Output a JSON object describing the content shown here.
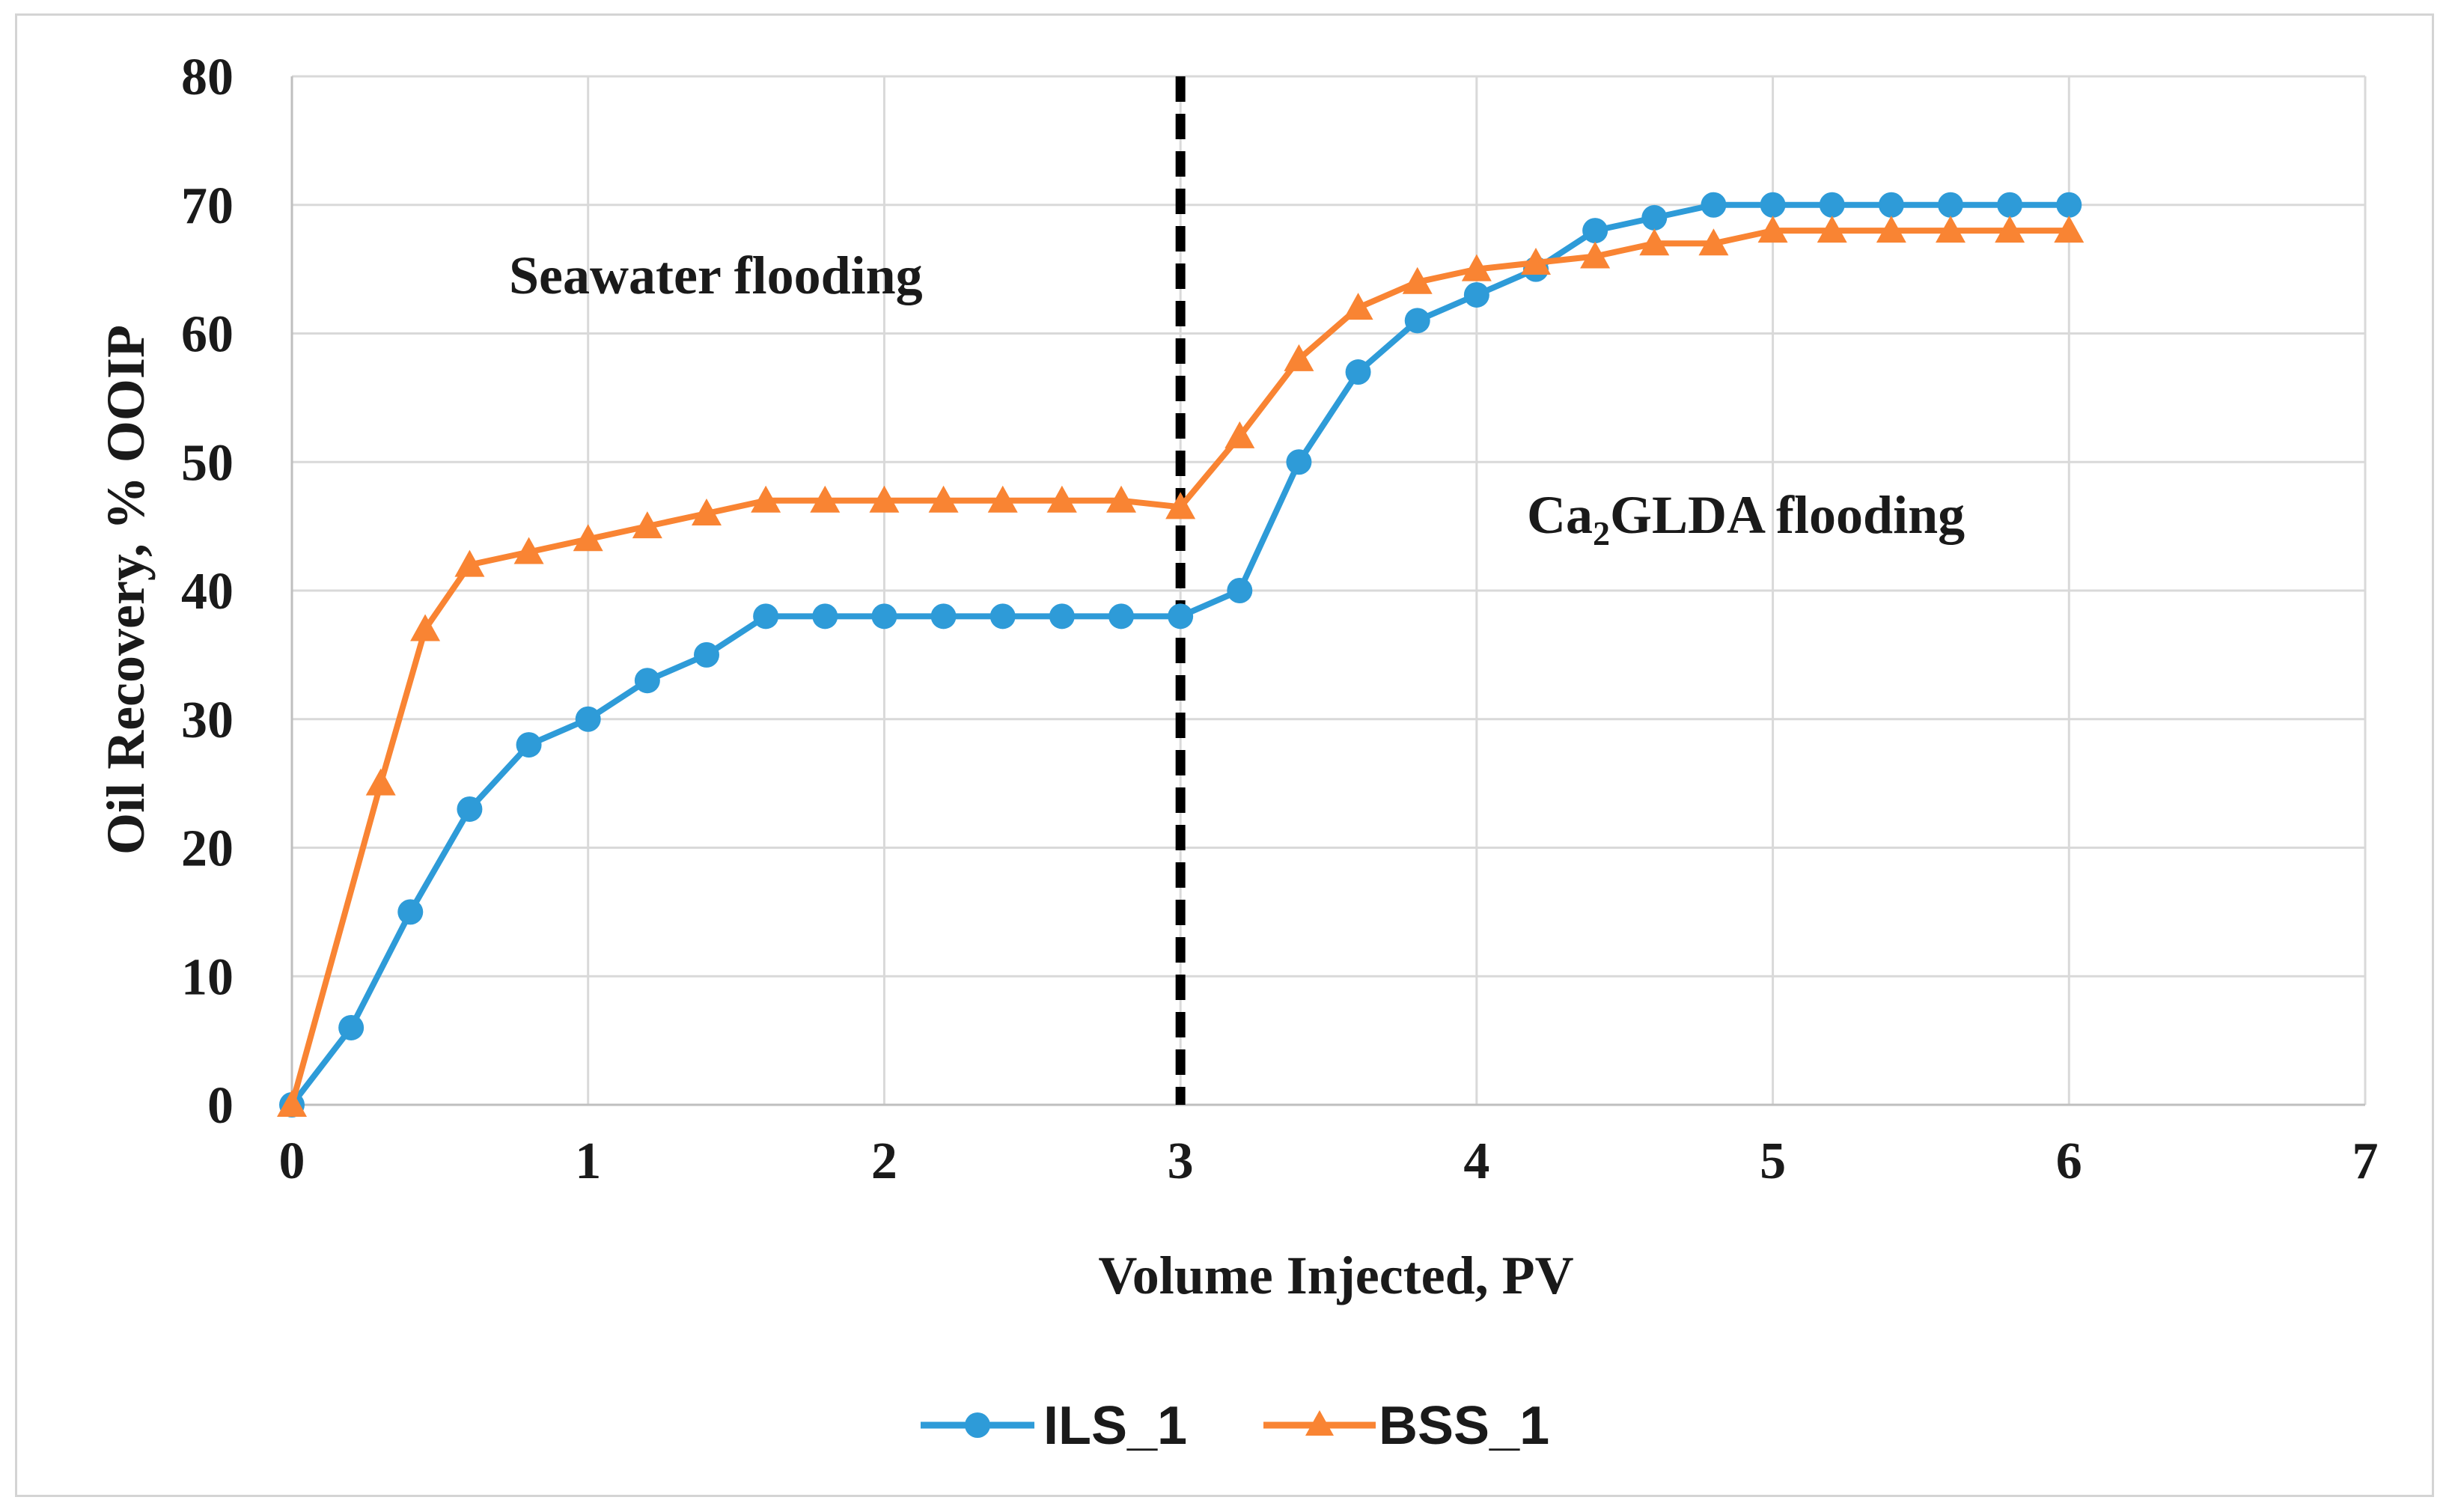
{
  "chart_data": {
    "type": "line",
    "xlabel": "Volume Injected, PV",
    "ylabel": "Oil Recovery, % OOIP",
    "xlim": [
      0,
      7
    ],
    "ylim": [
      0,
      80
    ],
    "xticks": [
      "0",
      "1",
      "2",
      "3",
      "4",
      "5",
      "6",
      "7"
    ],
    "yticks": [
      "0",
      "10",
      "20",
      "30",
      "40",
      "50",
      "60",
      "70",
      "80"
    ],
    "grid": true,
    "legend_position": "bottom-center",
    "divider_x": 3,
    "annotations": [
      {
        "text": "Seawater flooding",
        "position": "upper-left"
      },
      {
        "text_main": "Ca",
        "text_sub": "2",
        "text_rest": "GLDA flooding",
        "position": "middle-right"
      }
    ],
    "series": [
      {
        "name": "ILS_1",
        "color": "#2e9bd8",
        "marker": "circle",
        "x": [
          0,
          0.2,
          0.4,
          0.6,
          0.8,
          1.0,
          1.2,
          1.4,
          1.6,
          1.8,
          2.0,
          2.2,
          2.4,
          2.6,
          2.8,
          3.0,
          3.2,
          3.4,
          3.6,
          3.8,
          4.0,
          4.2,
          4.4,
          4.6,
          4.8,
          5.0,
          5.2,
          5.4,
          5.6,
          5.8,
          6.0
        ],
        "y": [
          0,
          6,
          15,
          23,
          28,
          30,
          33,
          35,
          38,
          38,
          38,
          38,
          38,
          38,
          38,
          38,
          40,
          50,
          57,
          61,
          63,
          65,
          68,
          69,
          70,
          70,
          70,
          70,
          70,
          70,
          70
        ]
      },
      {
        "name": "BSS_1",
        "color": "#f98433",
        "marker": "triangle",
        "x": [
          0,
          0.3,
          0.45,
          0.6,
          0.8,
          1.0,
          1.2,
          1.4,
          1.6,
          1.8,
          2.0,
          2.2,
          2.4,
          2.6,
          2.8,
          3.0,
          3.2,
          3.4,
          3.6,
          3.8,
          4.0,
          4.2,
          4.4,
          4.6,
          4.8,
          5.0,
          5.2,
          5.4,
          5.6,
          5.8,
          6.0
        ],
        "y": [
          0,
          25,
          37,
          42,
          43,
          44,
          45,
          46,
          47,
          47,
          47,
          47,
          47,
          47,
          47,
          46.5,
          52,
          58,
          62,
          64,
          65,
          65.5,
          66,
          67,
          67,
          68,
          68,
          68,
          68,
          68,
          68
        ]
      }
    ]
  }
}
